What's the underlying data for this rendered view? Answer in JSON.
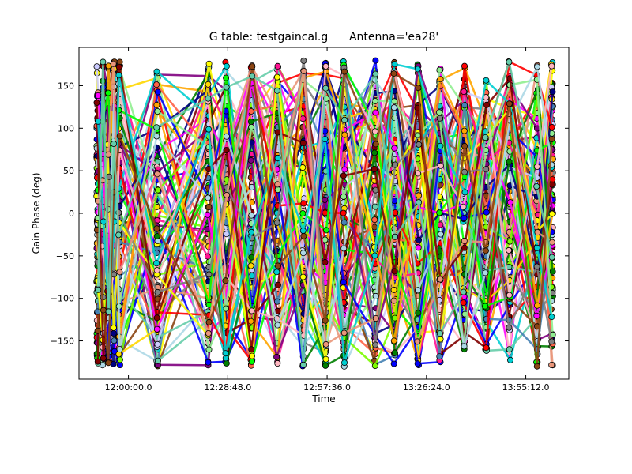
{
  "chart_data": {
    "type": "scatter",
    "title": "G table: testgaincal.g      Antenna='ea28'",
    "xlabel": "Time",
    "ylabel": "Gain Phase (deg)",
    "ylim": [
      -195,
      195
    ],
    "xlim": [
      "11:45:40",
      "14:07:40"
    ],
    "x_ticks": [
      "12:00:00.0",
      "12:28:48.0",
      "12:57:36.0",
      "13:26:24.0",
      "13:55:12.0"
    ],
    "y_ticks": [
      -150,
      -100,
      -50,
      0,
      50,
      100,
      150
    ],
    "grid": false,
    "marker": "circle",
    "connected": true,
    "scan_times": [
      "11:51:00",
      "11:52:40",
      "11:54:10",
      "11:55:45",
      "11:57:20",
      "12:08:20",
      "12:23:10",
      "12:28:20",
      "12:35:40",
      "12:43:10",
      "12:50:40",
      "12:57:10",
      "13:02:30",
      "13:11:30",
      "13:17:10",
      "13:24:00",
      "13:30:20",
      "13:37:20",
      "13:43:40",
      "13:50:30",
      "13:58:30",
      "14:02:50"
    ],
    "phase_range": [
      -180,
      180
    ],
    "series_colors": [
      "#000080",
      "#0000ff",
      "#ff0000",
      "#008000",
      "#ff00ff",
      "#ffa500",
      "#800080",
      "#00ff00",
      "#ffff00",
      "#ffb6c1",
      "#90ee90",
      "#add8e6",
      "#800000",
      "#808080",
      "#00ced1",
      "#e9967a",
      "#8b4513",
      "#66cdaa",
      "#ff6347",
      "#ccccff",
      "#ff1493",
      "#7cfc00",
      "#4682b4",
      "#ffd700"
    ]
  }
}
